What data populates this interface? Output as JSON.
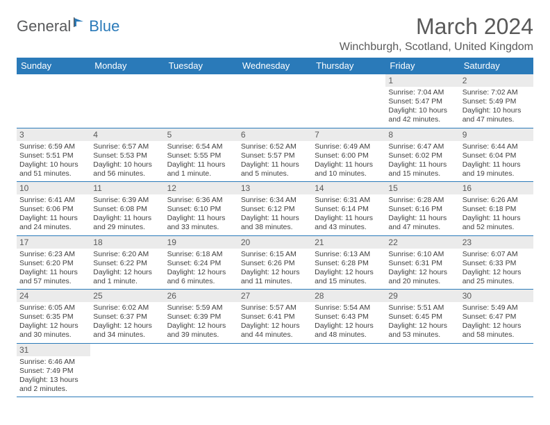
{
  "logo": {
    "general": "General",
    "blue": "Blue"
  },
  "title": "March 2024",
  "location": "Winchburgh, Scotland, United Kingdom",
  "colors": {
    "header_bg": "#2a7ab9",
    "header_text": "#ffffff",
    "daynum_bg": "#ebebeb",
    "border": "#2a7ab9",
    "text": "#404040",
    "title_text": "#595959",
    "logo_gray": "#58595b",
    "logo_blue": "#2a7ab9"
  },
  "weekdays": [
    "Sunday",
    "Monday",
    "Tuesday",
    "Wednesday",
    "Thursday",
    "Friday",
    "Saturday"
  ],
  "weeks": [
    [
      {
        "empty": true
      },
      {
        "empty": true
      },
      {
        "empty": true
      },
      {
        "empty": true
      },
      {
        "empty": true
      },
      {
        "num": "1",
        "sunrise": "Sunrise: 7:04 AM",
        "sunset": "Sunset: 5:47 PM",
        "daylight": "Daylight: 10 hours and 42 minutes."
      },
      {
        "num": "2",
        "sunrise": "Sunrise: 7:02 AM",
        "sunset": "Sunset: 5:49 PM",
        "daylight": "Daylight: 10 hours and 47 minutes."
      }
    ],
    [
      {
        "num": "3",
        "sunrise": "Sunrise: 6:59 AM",
        "sunset": "Sunset: 5:51 PM",
        "daylight": "Daylight: 10 hours and 51 minutes."
      },
      {
        "num": "4",
        "sunrise": "Sunrise: 6:57 AM",
        "sunset": "Sunset: 5:53 PM",
        "daylight": "Daylight: 10 hours and 56 minutes."
      },
      {
        "num": "5",
        "sunrise": "Sunrise: 6:54 AM",
        "sunset": "Sunset: 5:55 PM",
        "daylight": "Daylight: 11 hours and 1 minute."
      },
      {
        "num": "6",
        "sunrise": "Sunrise: 6:52 AM",
        "sunset": "Sunset: 5:57 PM",
        "daylight": "Daylight: 11 hours and 5 minutes."
      },
      {
        "num": "7",
        "sunrise": "Sunrise: 6:49 AM",
        "sunset": "Sunset: 6:00 PM",
        "daylight": "Daylight: 11 hours and 10 minutes."
      },
      {
        "num": "8",
        "sunrise": "Sunrise: 6:47 AM",
        "sunset": "Sunset: 6:02 PM",
        "daylight": "Daylight: 11 hours and 15 minutes."
      },
      {
        "num": "9",
        "sunrise": "Sunrise: 6:44 AM",
        "sunset": "Sunset: 6:04 PM",
        "daylight": "Daylight: 11 hours and 19 minutes."
      }
    ],
    [
      {
        "num": "10",
        "sunrise": "Sunrise: 6:41 AM",
        "sunset": "Sunset: 6:06 PM",
        "daylight": "Daylight: 11 hours and 24 minutes."
      },
      {
        "num": "11",
        "sunrise": "Sunrise: 6:39 AM",
        "sunset": "Sunset: 6:08 PM",
        "daylight": "Daylight: 11 hours and 29 minutes."
      },
      {
        "num": "12",
        "sunrise": "Sunrise: 6:36 AM",
        "sunset": "Sunset: 6:10 PM",
        "daylight": "Daylight: 11 hours and 33 minutes."
      },
      {
        "num": "13",
        "sunrise": "Sunrise: 6:34 AM",
        "sunset": "Sunset: 6:12 PM",
        "daylight": "Daylight: 11 hours and 38 minutes."
      },
      {
        "num": "14",
        "sunrise": "Sunrise: 6:31 AM",
        "sunset": "Sunset: 6:14 PM",
        "daylight": "Daylight: 11 hours and 43 minutes."
      },
      {
        "num": "15",
        "sunrise": "Sunrise: 6:28 AM",
        "sunset": "Sunset: 6:16 PM",
        "daylight": "Daylight: 11 hours and 47 minutes."
      },
      {
        "num": "16",
        "sunrise": "Sunrise: 6:26 AM",
        "sunset": "Sunset: 6:18 PM",
        "daylight": "Daylight: 11 hours and 52 minutes."
      }
    ],
    [
      {
        "num": "17",
        "sunrise": "Sunrise: 6:23 AM",
        "sunset": "Sunset: 6:20 PM",
        "daylight": "Daylight: 11 hours and 57 minutes."
      },
      {
        "num": "18",
        "sunrise": "Sunrise: 6:20 AM",
        "sunset": "Sunset: 6:22 PM",
        "daylight": "Daylight: 12 hours and 1 minute."
      },
      {
        "num": "19",
        "sunrise": "Sunrise: 6:18 AM",
        "sunset": "Sunset: 6:24 PM",
        "daylight": "Daylight: 12 hours and 6 minutes."
      },
      {
        "num": "20",
        "sunrise": "Sunrise: 6:15 AM",
        "sunset": "Sunset: 6:26 PM",
        "daylight": "Daylight: 12 hours and 11 minutes."
      },
      {
        "num": "21",
        "sunrise": "Sunrise: 6:13 AM",
        "sunset": "Sunset: 6:28 PM",
        "daylight": "Daylight: 12 hours and 15 minutes."
      },
      {
        "num": "22",
        "sunrise": "Sunrise: 6:10 AM",
        "sunset": "Sunset: 6:31 PM",
        "daylight": "Daylight: 12 hours and 20 minutes."
      },
      {
        "num": "23",
        "sunrise": "Sunrise: 6:07 AM",
        "sunset": "Sunset: 6:33 PM",
        "daylight": "Daylight: 12 hours and 25 minutes."
      }
    ],
    [
      {
        "num": "24",
        "sunrise": "Sunrise: 6:05 AM",
        "sunset": "Sunset: 6:35 PM",
        "daylight": "Daylight: 12 hours and 30 minutes."
      },
      {
        "num": "25",
        "sunrise": "Sunrise: 6:02 AM",
        "sunset": "Sunset: 6:37 PM",
        "daylight": "Daylight: 12 hours and 34 minutes."
      },
      {
        "num": "26",
        "sunrise": "Sunrise: 5:59 AM",
        "sunset": "Sunset: 6:39 PM",
        "daylight": "Daylight: 12 hours and 39 minutes."
      },
      {
        "num": "27",
        "sunrise": "Sunrise: 5:57 AM",
        "sunset": "Sunset: 6:41 PM",
        "daylight": "Daylight: 12 hours and 44 minutes."
      },
      {
        "num": "28",
        "sunrise": "Sunrise: 5:54 AM",
        "sunset": "Sunset: 6:43 PM",
        "daylight": "Daylight: 12 hours and 48 minutes."
      },
      {
        "num": "29",
        "sunrise": "Sunrise: 5:51 AM",
        "sunset": "Sunset: 6:45 PM",
        "daylight": "Daylight: 12 hours and 53 minutes."
      },
      {
        "num": "30",
        "sunrise": "Sunrise: 5:49 AM",
        "sunset": "Sunset: 6:47 PM",
        "daylight": "Daylight: 12 hours and 58 minutes."
      }
    ],
    [
      {
        "num": "31",
        "sunrise": "Sunrise: 6:46 AM",
        "sunset": "Sunset: 7:49 PM",
        "daylight": "Daylight: 13 hours and 2 minutes."
      },
      {
        "empty": true
      },
      {
        "empty": true
      },
      {
        "empty": true
      },
      {
        "empty": true
      },
      {
        "empty": true
      },
      {
        "empty": true
      }
    ]
  ]
}
